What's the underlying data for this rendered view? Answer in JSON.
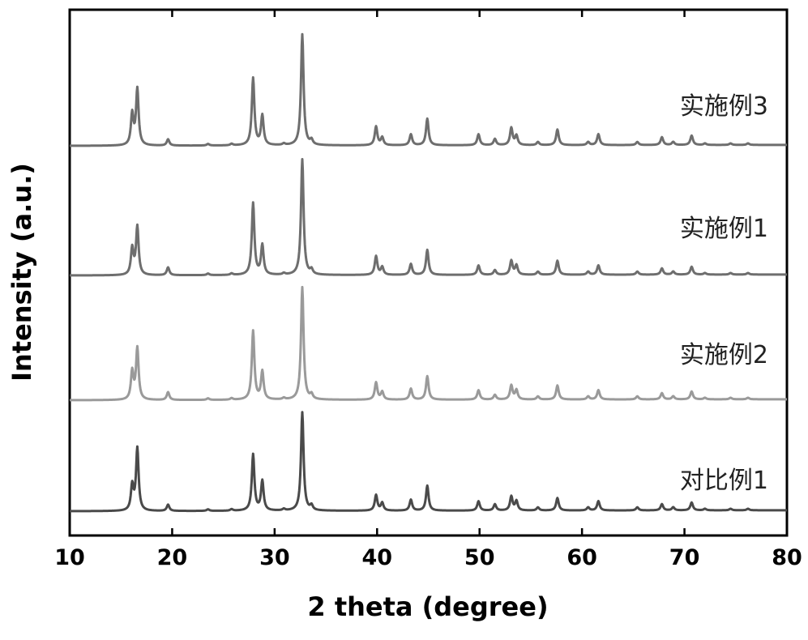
{
  "chart_data": {
    "type": "line",
    "title": "",
    "xlabel": "2 theta (degree)",
    "ylabel": "Intensity (a.u.)",
    "xlim": [
      10,
      80
    ],
    "xticks": [
      10,
      20,
      30,
      40,
      50,
      60,
      70,
      80
    ],
    "y_ticks_shown": false,
    "grid": false,
    "legend": "none (series labelled inline, right side)",
    "peak_width_deg": 0.15,
    "series": [
      {
        "name": "实施例3",
        "color": "#6e6e6e",
        "baseline": 0,
        "peaks": [
          [
            16.1,
            20
          ],
          [
            16.6,
            36
          ],
          [
            19.6,
            4
          ],
          [
            23.5,
            1
          ],
          [
            25.8,
            1
          ],
          [
            27.9,
            43
          ],
          [
            28.8,
            19
          ],
          [
            30.9,
            1
          ],
          [
            32.7,
            71
          ],
          [
            33.6,
            3
          ],
          [
            39.9,
            12
          ],
          [
            40.5,
            5
          ],
          [
            43.3,
            7
          ],
          [
            44.9,
            17
          ],
          [
            49.9,
            7
          ],
          [
            51.5,
            4
          ],
          [
            53.1,
            11
          ],
          [
            53.6,
            6
          ],
          [
            55.7,
            2
          ],
          [
            57.6,
            10
          ],
          [
            60.6,
            2
          ],
          [
            61.6,
            7
          ],
          [
            65.4,
            2
          ],
          [
            67.8,
            5
          ],
          [
            68.9,
            2
          ],
          [
            70.7,
            6
          ],
          [
            72.0,
            1
          ],
          [
            74.5,
            1
          ],
          [
            76.2,
            1
          ]
        ]
      },
      {
        "name": "实施例1",
        "color": "#6e6e6e",
        "baseline": 0,
        "peaks": [
          [
            16.1,
            17
          ],
          [
            16.6,
            31
          ],
          [
            19.6,
            5
          ],
          [
            23.5,
            1
          ],
          [
            25.8,
            1
          ],
          [
            27.9,
            46
          ],
          [
            28.8,
            19
          ],
          [
            30.9,
            1
          ],
          [
            32.7,
            74
          ],
          [
            33.6,
            3
          ],
          [
            39.9,
            12
          ],
          [
            40.5,
            5
          ],
          [
            43.3,
            7
          ],
          [
            44.9,
            16
          ],
          [
            49.9,
            6
          ],
          [
            51.5,
            3
          ],
          [
            53.1,
            9
          ],
          [
            53.6,
            6
          ],
          [
            55.7,
            2
          ],
          [
            57.6,
            9
          ],
          [
            60.6,
            2
          ],
          [
            61.6,
            6
          ],
          [
            65.4,
            2
          ],
          [
            67.8,
            4
          ],
          [
            68.9,
            2
          ],
          [
            70.7,
            5
          ],
          [
            72.0,
            1
          ],
          [
            74.5,
            1
          ],
          [
            76.2,
            1
          ]
        ]
      },
      {
        "name": "实施例2",
        "color": "#9a9a9a",
        "baseline": 0,
        "peaks": [
          [
            16.1,
            18
          ],
          [
            16.6,
            33
          ],
          [
            19.6,
            5
          ],
          [
            23.5,
            1
          ],
          [
            25.8,
            1
          ],
          [
            27.9,
            44
          ],
          [
            28.8,
            18
          ],
          [
            30.9,
            1
          ],
          [
            32.7,
            72
          ],
          [
            33.6,
            3
          ],
          [
            39.9,
            11
          ],
          [
            40.5,
            5
          ],
          [
            43.3,
            7
          ],
          [
            44.9,
            15
          ],
          [
            49.9,
            6
          ],
          [
            51.5,
            3
          ],
          [
            53.1,
            9
          ],
          [
            53.6,
            6
          ],
          [
            55.7,
            2
          ],
          [
            57.6,
            9
          ],
          [
            60.6,
            2
          ],
          [
            61.6,
            6
          ],
          [
            65.4,
            2
          ],
          [
            67.8,
            4
          ],
          [
            68.9,
            2
          ],
          [
            70.7,
            5
          ],
          [
            72.0,
            1
          ],
          [
            74.5,
            1
          ],
          [
            76.2,
            1
          ]
        ]
      },
      {
        "name": "对比例1",
        "color": "#4a4a4a",
        "baseline": 0,
        "peaks": [
          [
            16.1,
            16
          ],
          [
            16.6,
            40
          ],
          [
            19.6,
            4
          ],
          [
            23.5,
            1
          ],
          [
            25.8,
            1
          ],
          [
            27.9,
            36
          ],
          [
            28.8,
            19
          ],
          [
            30.9,
            1
          ],
          [
            32.7,
            63
          ],
          [
            33.6,
            3
          ],
          [
            39.9,
            10
          ],
          [
            40.5,
            5
          ],
          [
            43.3,
            7
          ],
          [
            44.9,
            16
          ],
          [
            49.9,
            6
          ],
          [
            51.5,
            4
          ],
          [
            53.1,
            9
          ],
          [
            53.6,
            6
          ],
          [
            55.7,
            2
          ],
          [
            57.6,
            8
          ],
          [
            60.6,
            2
          ],
          [
            61.6,
            6
          ],
          [
            65.4,
            2
          ],
          [
            67.8,
            4
          ],
          [
            68.9,
            2
          ],
          [
            70.7,
            5
          ],
          [
            72.0,
            1
          ],
          [
            74.5,
            1
          ],
          [
            76.2,
            1
          ]
        ]
      }
    ]
  }
}
